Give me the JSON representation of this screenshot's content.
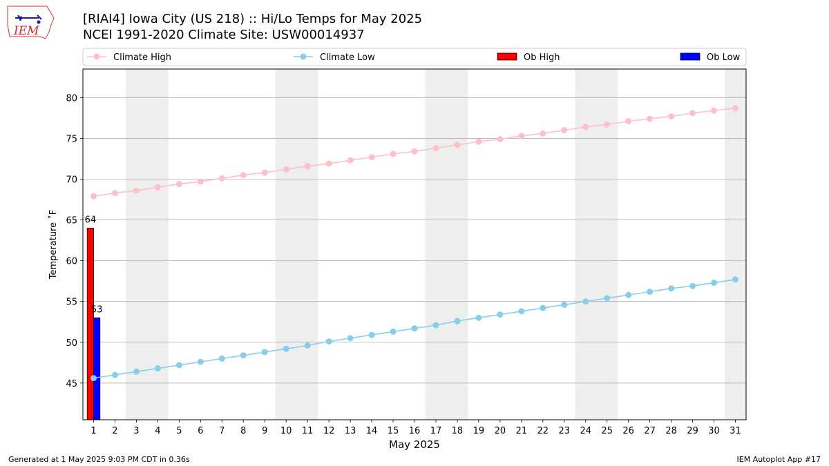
{
  "header": {
    "title": "[RIAI4] Iowa City (US 218) :: Hi/Lo Temps for May 2025",
    "subtitle": "NCEI 1991-2020 Climate Site: USW00014937"
  },
  "logo": {
    "text": "IEM"
  },
  "footer": {
    "left": "Generated at 1 May 2025 9:03 PM CDT in 0.36s",
    "right": "IEM Autoplot App #17"
  },
  "chart_data": {
    "type": "bar",
    "xlabel": "May 2025",
    "ylabel": "Temperature ˚F",
    "ylim": [
      40.5,
      83.5
    ],
    "xlim": [
      0.5,
      31.5
    ],
    "yticks": [
      45,
      50,
      55,
      60,
      65,
      70,
      75,
      80
    ],
    "x": [
      1,
      2,
      3,
      4,
      5,
      6,
      7,
      8,
      9,
      10,
      11,
      12,
      13,
      14,
      15,
      16,
      17,
      18,
      19,
      20,
      21,
      22,
      23,
      24,
      25,
      26,
      27,
      28,
      29,
      30,
      31
    ],
    "weekend_shading": [
      [
        2.5,
        4.5
      ],
      [
        9.5,
        11.5
      ],
      [
        16.5,
        18.5
      ],
      [
        23.5,
        25.5
      ],
      [
        30.5,
        31.5
      ]
    ],
    "grid": "horizontal",
    "legend": {
      "placement": "top",
      "entries": [
        {
          "label": "Climate High",
          "color": "#ffc0cb",
          "kind": "line"
        },
        {
          "label": "Climate Low",
          "color": "#87ceeb",
          "kind": "line"
        },
        {
          "label": "Ob High",
          "color": "#ff0000",
          "kind": "bar"
        },
        {
          "label": "Ob Low",
          "color": "#0000ff",
          "kind": "bar"
        }
      ]
    },
    "series": [
      {
        "name": "Climate High",
        "type": "line",
        "color": "#ffc0cb",
        "values": [
          67.9,
          68.3,
          68.6,
          69.0,
          69.4,
          69.7,
          70.1,
          70.5,
          70.8,
          71.2,
          71.6,
          71.9,
          72.3,
          72.7,
          73.1,
          73.4,
          73.8,
          74.2,
          74.6,
          74.9,
          75.3,
          75.6,
          76.0,
          76.4,
          76.7,
          77.1,
          77.4,
          77.7,
          78.1,
          78.4,
          78.7
        ]
      },
      {
        "name": "Climate Low",
        "type": "line",
        "color": "#87ceeb",
        "values": [
          45.6,
          46.0,
          46.4,
          46.8,
          47.2,
          47.6,
          48.0,
          48.4,
          48.8,
          49.2,
          49.6,
          50.1,
          50.5,
          50.9,
          51.3,
          51.7,
          52.1,
          52.6,
          53.0,
          53.4,
          53.8,
          54.2,
          54.6,
          55.0,
          55.4,
          55.8,
          56.2,
          56.6,
          56.9,
          57.3,
          57.7
        ]
      },
      {
        "name": "Ob High",
        "type": "bar",
        "color": "#ff0000",
        "x": [
          1
        ],
        "values": [
          64
        ],
        "labels": [
          "64"
        ]
      },
      {
        "name": "Ob Low",
        "type": "bar",
        "color": "#0000ff",
        "x": [
          1
        ],
        "values": [
          53
        ],
        "labels": [
          "53"
        ]
      }
    ]
  }
}
